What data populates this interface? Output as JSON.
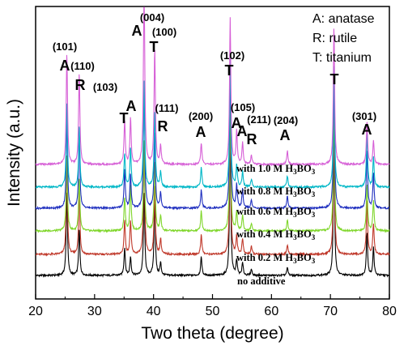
{
  "chart_data": {
    "type": "line",
    "xlabel": "Two theta (degree)",
    "ylabel": "Intensity (a.u.)",
    "xlim": [
      20,
      80
    ],
    "x_ticks": [
      "20",
      "30",
      "40",
      "50",
      "60",
      "70",
      "80"
    ],
    "legend": {
      "placement": "top-right",
      "entries": [
        "A: anatase",
        "R: rutile",
        "T: titanium"
      ]
    },
    "series": [
      {
        "name": "no additive",
        "color": "#000000"
      },
      {
        "name": "with 0.2 M H3BO3",
        "label_main": "with 0.2 M H",
        "label_sub1": "3",
        "label_mid": "BO",
        "label_sub2": "3",
        "color": "#c0392b"
      },
      {
        "name": "with 0.4 M H3BO3",
        "label_main": "with 0.4 M H",
        "label_sub1": "3",
        "label_mid": "BO",
        "label_sub2": "3",
        "color": "#7fd62a"
      },
      {
        "name": "with 0.6 M H3BO3",
        "label_main": "with 0.6 M H",
        "label_sub1": "3",
        "label_mid": "BO",
        "label_sub2": "3",
        "color": "#1f2fbf"
      },
      {
        "name": "with 0.8 M H3BO3",
        "label_main": "with 0.8 M H",
        "label_sub1": "3",
        "label_mid": "BO",
        "label_sub2": "3",
        "color": "#00b7c7"
      },
      {
        "name": "with 1.0 M H3BO3",
        "label_main": "with 1.0 M H",
        "label_sub1": "3",
        "label_mid": "BO",
        "label_sub2": "3",
        "color": "#d65fd6"
      }
    ],
    "series_label_text": [
      "no additive",
      "with 0.2 M H3BO3",
      "with 0.4 M H3BO3",
      "with 0.6 M H3BO3",
      "with 0.8 M H3BO3",
      "with 1.0 M H3BO3"
    ],
    "peaks": [
      {
        "x": 25.3,
        "phase": "A",
        "hkl": "(101)",
        "heights": [
          0.55,
          0.6,
          0.5,
          0.6,
          0.55,
          0.72
        ]
      },
      {
        "x": 27.4,
        "phase": "R",
        "hkl": "(110)",
        "heights": [
          0.3,
          0.42,
          0.35,
          0.5,
          0.4,
          0.6
        ]
      },
      {
        "x": 35.1,
        "phase": "T",
        "hkl": "",
        "heights": [
          0.18,
          0.22,
          0.22,
          0.25,
          0.22,
          0.28
        ]
      },
      {
        "x": 36.1,
        "phase": "A",
        "hkl": "(103)",
        "heights": [
          0.12,
          0.22,
          0.3,
          0.22,
          0.25,
          0.3
        ]
      },
      {
        "x": 38.4,
        "phase": "A",
        "hkl": "(004)",
        "heights": [
          0.55,
          0.72,
          0.6,
          0.8,
          0.7,
          1.2
        ]
      },
      {
        "x": 40.2,
        "phase": "T",
        "hkl": "(100)",
        "heights": [
          0.5,
          0.45,
          0.45,
          0.5,
          0.5,
          0.75
        ]
      },
      {
        "x": 41.2,
        "phase": "R",
        "hkl": "(111)",
        "heights": [
          0.08,
          0.1,
          0.1,
          0.1,
          0.1,
          0.12
        ]
      },
      {
        "x": 48.1,
        "phase": "A",
        "hkl": "(200)",
        "heights": [
          0.12,
          0.13,
          0.13,
          0.12,
          0.13,
          0.14
        ]
      },
      {
        "x": 53.0,
        "phase": "T",
        "hkl": "(102)",
        "heights": [
          0.9,
          0.9,
          0.85,
          0.9,
          0.85,
          0.95
        ]
      },
      {
        "x": 54.1,
        "phase": "A",
        "hkl": "(105)",
        "heights": [
          0.1,
          0.12,
          0.12,
          0.15,
          0.14,
          0.22
        ]
      },
      {
        "x": 55.1,
        "phase": "A",
        "hkl": "",
        "heights": [
          0.08,
          0.1,
          0.1,
          0.12,
          0.1,
          0.14
        ]
      },
      {
        "x": 56.6,
        "phase": "R",
        "hkl": "(211)",
        "heights": [
          0.04,
          0.05,
          0.05,
          0.05,
          0.05,
          0.06
        ]
      },
      {
        "x": 62.7,
        "phase": "A",
        "hkl": "(204)",
        "heights": [
          0.05,
          0.06,
          0.07,
          0.08,
          0.07,
          0.09
        ]
      },
      {
        "x": 70.6,
        "phase": "T",
        "hkl": "",
        "heights": [
          0.85,
          0.85,
          0.8,
          0.85,
          0.8,
          0.9
        ]
      },
      {
        "x": 76.2,
        "phase": "A",
        "hkl": "(301)",
        "heights": [
          0.28,
          0.35,
          0.3,
          0.38,
          0.35,
          0.28
        ]
      },
      {
        "x": 77.3,
        "phase": "",
        "hkl": "",
        "heights": [
          0.18,
          0.2,
          0.2,
          0.22,
          0.2,
          0.15
        ]
      }
    ],
    "annotations": [
      {
        "text": "(101)",
        "x": 25.3,
        "kind": "hkl"
      },
      {
        "text": "A",
        "x": 25.3,
        "kind": "phase"
      },
      {
        "text": "(110)",
        "x": 27.4,
        "kind": "hkl"
      },
      {
        "text": "R",
        "x": 27.4,
        "kind": "phase"
      },
      {
        "text": "(103)",
        "x": 36.1,
        "kind": "hkl"
      },
      {
        "text": "A",
        "x": 36.1,
        "kind": "phase"
      },
      {
        "text": "T",
        "x": 35.1,
        "kind": "phase"
      },
      {
        "text": "(004)",
        "x": 38.4,
        "kind": "hkl"
      },
      {
        "text": "A",
        "x": 38.4,
        "kind": "phase"
      },
      {
        "text": "(100)",
        "x": 40.2,
        "kind": "hkl"
      },
      {
        "text": "T",
        "x": 40.2,
        "kind": "phase"
      },
      {
        "text": "(111)",
        "x": 41.2,
        "kind": "hkl"
      },
      {
        "text": "R",
        "x": 41.2,
        "kind": "phase"
      },
      {
        "text": "(200)",
        "x": 48.1,
        "kind": "hkl"
      },
      {
        "text": "A",
        "x": 48.1,
        "kind": "phase"
      },
      {
        "text": "(102)",
        "x": 53.0,
        "kind": "hkl"
      },
      {
        "text": "T",
        "x": 53.0,
        "kind": "phase"
      },
      {
        "text": "(105)",
        "x": 54.1,
        "kind": "hkl"
      },
      {
        "text": "A",
        "x": 54.1,
        "kind": "phase"
      },
      {
        "text": "A",
        "x": 55.1,
        "kind": "phase"
      },
      {
        "text": "(211)",
        "x": 56.6,
        "kind": "hkl"
      },
      {
        "text": "R",
        "x": 56.6,
        "kind": "phase"
      },
      {
        "text": "(204)",
        "x": 62.7,
        "kind": "hkl"
      },
      {
        "text": "A",
        "x": 62.7,
        "kind": "phase"
      },
      {
        "text": "T",
        "x": 70.6,
        "kind": "phase"
      },
      {
        "text": "(301)",
        "x": 76.2,
        "kind": "hkl"
      },
      {
        "text": "A",
        "x": 76.2,
        "kind": "phase"
      }
    ],
    "grid": false
  }
}
